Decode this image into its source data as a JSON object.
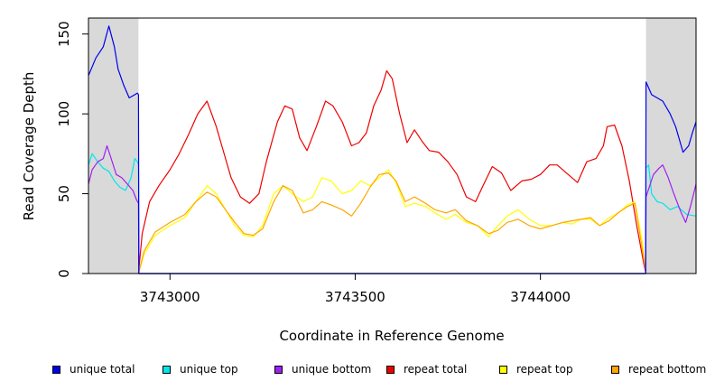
{
  "chart_data": {
    "type": "line",
    "title": "",
    "xlabel": "Coordinate in Reference Genome",
    "ylabel": "Read Coverage Depth",
    "xlim": [
      3742780,
      3744420
    ],
    "ylim": [
      0,
      160
    ],
    "x_ticks": [
      3743000,
      3743500,
      3744000
    ],
    "x_tick_labels": [
      "3743000",
      "3743500",
      "3744000"
    ],
    "y_ticks": [
      0,
      50,
      100,
      150
    ],
    "y_tick_labels": [
      "0",
      "50",
      "100",
      "150"
    ],
    "shaded_regions": [
      {
        "x_start": 3742780,
        "x_end": 3742915,
        "color": "#d9d9d9"
      },
      {
        "x_start": 3744285,
        "x_end": 3744420,
        "color": "#d9d9d9"
      }
    ],
    "series": [
      {
        "name": "unique total",
        "color": "#0000ee",
        "x": [
          3742780,
          3742800,
          3742820,
          3742835,
          3742850,
          3742860,
          3742875,
          3742890,
          3742905,
          3742912,
          3742915,
          3742916,
          3744284,
          3744285,
          3744300,
          3744315,
          3744330,
          3744350,
          3744365,
          3744385,
          3744400,
          3744410,
          3744420
        ],
        "y": [
          124,
          135,
          142,
          155,
          142,
          128,
          118,
          110,
          112,
          113,
          112,
          0,
          0,
          120,
          112,
          110,
          108,
          100,
          92,
          76,
          80,
          88,
          95
        ]
      },
      {
        "name": "unique top",
        "color": "#00e5ee",
        "x": [
          3742780,
          3742790,
          3742805,
          3742820,
          3742835,
          3742850,
          3742865,
          3742880,
          3742895,
          3742905,
          3742912,
          3742915,
          3742916,
          3744284,
          3744285,
          3744292,
          3744300,
          3744315,
          3744330,
          3744350,
          3744370,
          3744395,
          3744420
        ],
        "y": [
          68,
          75,
          70,
          66,
          64,
          58,
          54,
          52,
          60,
          72,
          70,
          68,
          0,
          0,
          66,
          68,
          50,
          45,
          44,
          40,
          42,
          37,
          36
        ]
      },
      {
        "name": "unique bottom",
        "color": "#a020f0",
        "x": [
          3742780,
          3742790,
          3742805,
          3742820,
          3742830,
          3742840,
          3742855,
          3742870,
          3742885,
          3742900,
          3742910,
          3742915,
          3742916,
          3744284,
          3744285,
          3744295,
          3744305,
          3744320,
          3744330,
          3744345,
          3744360,
          3744380,
          3744392,
          3744405,
          3744420
        ],
        "y": [
          56,
          65,
          70,
          72,
          80,
          73,
          62,
          60,
          56,
          52,
          46,
          44,
          0,
          0,
          48,
          55,
          62,
          66,
          68,
          60,
          50,
          38,
          32,
          42,
          56
        ]
      },
      {
        "name": "repeat total",
        "color": "#ee0000",
        "x": [
          3742915,
          3742925,
          3742945,
          3742970,
          3743000,
          3743025,
          3743050,
          3743075,
          3743100,
          3743125,
          3743140,
          3743165,
          3743190,
          3743215,
          3743240,
          3743260,
          3743290,
          3743310,
          3743330,
          3743350,
          3743370,
          3743395,
          3743420,
          3743440,
          3743465,
          3743490,
          3743510,
          3743530,
          3743550,
          3743570,
          3743585,
          3743600,
          3743620,
          3743640,
          3743660,
          3743680,
          3743700,
          3743725,
          3743750,
          3743775,
          3743800,
          3743825,
          3743845,
          3743870,
          3743895,
          3743920,
          3743950,
          3743975,
          3744000,
          3744025,
          3744045,
          3744075,
          3744100,
          3744125,
          3744150,
          3744170,
          3744180,
          3744200,
          3744220,
          3744240,
          3744260,
          3744280,
          3744285
        ],
        "y": [
          0,
          25,
          45,
          55,
          65,
          75,
          87,
          100,
          108,
          92,
          80,
          60,
          48,
          44,
          50,
          70,
          95,
          105,
          103,
          85,
          77,
          92,
          108,
          105,
          95,
          80,
          82,
          88,
          105,
          115,
          127,
          122,
          100,
          82,
          90,
          83,
          77,
          76,
          70,
          62,
          48,
          45,
          55,
          67,
          63,
          52,
          58,
          59,
          62,
          68,
          68,
          62,
          57,
          70,
          72,
          80,
          92,
          93,
          80,
          58,
          30,
          5,
          0
        ]
      },
      {
        "name": "repeat top",
        "color": "#ffff00",
        "x": [
          3742915,
          3742930,
          3742960,
          3743000,
          3743040,
          3743070,
          3743100,
          3743125,
          3743150,
          3743175,
          3743200,
          3743225,
          3743250,
          3743280,
          3743305,
          3743330,
          3743360,
          3743385,
          3743410,
          3743435,
          3743465,
          3743490,
          3743515,
          3743540,
          3743565,
          3743590,
          3743610,
          3743635,
          3743660,
          3743690,
          3743715,
          3743745,
          3743770,
          3743800,
          3743830,
          3743860,
          3743885,
          3743910,
          3743940,
          3743970,
          3744000,
          3744030,
          3744060,
          3744085,
          3744110,
          3744135,
          3744160,
          3744185,
          3744210,
          3744235,
          3744255,
          3744275,
          3744285
        ],
        "y": [
          0,
          12,
          24,
          30,
          35,
          45,
          55,
          50,
          40,
          30,
          24,
          23,
          30,
          50,
          55,
          50,
          45,
          48,
          60,
          58,
          50,
          52,
          58,
          55,
          60,
          65,
          57,
          42,
          44,
          42,
          38,
          34,
          37,
          32,
          30,
          23,
          30,
          36,
          40,
          34,
          30,
          30,
          32,
          31,
          34,
          34,
          30,
          35,
          38,
          43,
          45,
          20,
          0
        ]
      },
      {
        "name": "repeat bottom",
        "color": "#ffa500",
        "x": [
          3742915,
          3742930,
          3742960,
          3743000,
          3743040,
          3743070,
          3743100,
          3743125,
          3743150,
          3743175,
          3743200,
          3743225,
          3743250,
          3743280,
          3743305,
          3743330,
          3743360,
          3743385,
          3743410,
          3743435,
          3743465,
          3743490,
          3743515,
          3743540,
          3743565,
          3743590,
          3743610,
          3743635,
          3743660,
          3743690,
          3743715,
          3743745,
          3743770,
          3743800,
          3743830,
          3743860,
          3743885,
          3743910,
          3743940,
          3743970,
          3744000,
          3744030,
          3744060,
          3744085,
          3744110,
          3744135,
          3744160,
          3744185,
          3744210,
          3744235,
          3744255,
          3744275,
          3744285
        ],
        "y": [
          0,
          14,
          26,
          32,
          37,
          45,
          51,
          48,
          40,
          32,
          25,
          24,
          28,
          45,
          55,
          52,
          38,
          40,
          45,
          43,
          40,
          36,
          44,
          54,
          62,
          63,
          58,
          45,
          48,
          44,
          40,
          38,
          40,
          33,
          30,
          25,
          27,
          32,
          34,
          30,
          28,
          30,
          32,
          33,
          34,
          35,
          30,
          33,
          38,
          42,
          44,
          15,
          0
        ]
      }
    ],
    "legend": {
      "position": "bottom",
      "items": [
        {
          "label": "unique total",
          "color": "#0000ee"
        },
        {
          "label": "unique top",
          "color": "#00e5ee"
        },
        {
          "label": "unique bottom",
          "color": "#a020f0"
        },
        {
          "label": "repeat total",
          "color": "#ee0000"
        },
        {
          "label": "repeat top",
          "color": "#ffff00"
        },
        {
          "label": "repeat bottom",
          "color": "#ffa500"
        }
      ]
    }
  }
}
